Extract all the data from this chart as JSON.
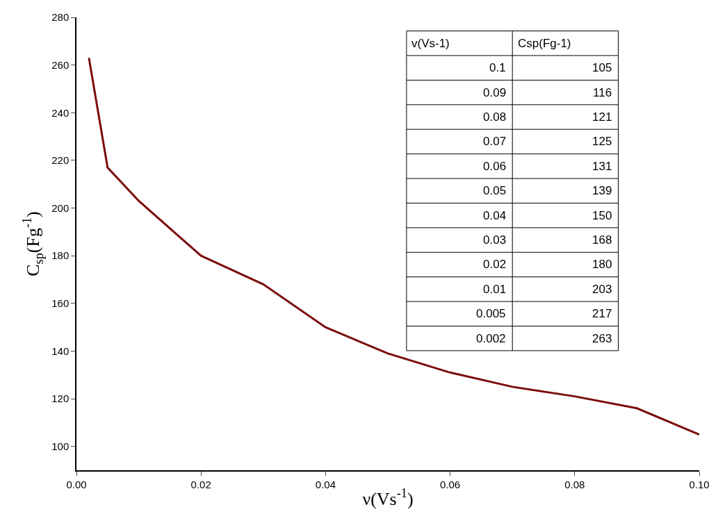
{
  "chart_data": {
    "type": "line",
    "xlabel": "ν(Vs$^{-1}$)",
    "ylabel": "C$_{sp}$(Fg$^{-1}$)",
    "x": [
      0.002,
      0.005,
      0.01,
      0.02,
      0.03,
      0.04,
      0.05,
      0.06,
      0.07,
      0.08,
      0.09,
      0.1
    ],
    "series": [
      {
        "color": "#7b0c0c",
        "values": [
          263,
          217,
          203,
          180,
          168,
          150,
          139,
          131,
          125,
          121,
          116,
          105
        ]
      }
    ],
    "xlim": [
      0,
      0.1
    ],
    "xticks": [
      {
        "value": 0,
        "label": "0.00"
      },
      0.02,
      0.04,
      0.06,
      0.08,
      {
        "value": 0.1,
        "label": "0.10"
      }
    ],
    "ylim": [
      90,
      280
    ],
    "yticks": [
      100,
      120,
      140,
      160,
      180,
      200,
      220,
      240,
      260,
      280
    ],
    "annotations": [
      "v(Vs-1)",
      "Csp(Fg-1)",
      "0.1",
      "105",
      "0.09",
      "116",
      "0.08",
      "121",
      "0.07",
      "125",
      "0.06",
      "131",
      "0.05",
      "139",
      "0.04",
      "150",
      "0.03",
      "168",
      "0.02",
      "180",
      "0.01",
      "203",
      "0.005",
      "217",
      "0.002",
      "263"
    ],
    "marker": "none",
    "line_style": "solid"
  }
}
